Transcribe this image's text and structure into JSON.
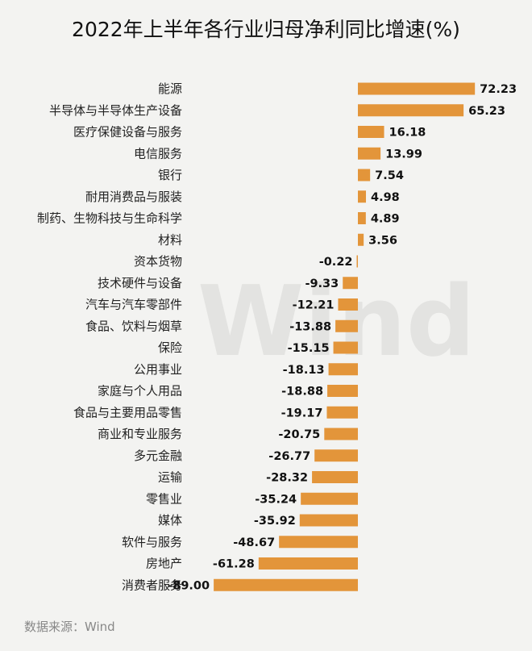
{
  "chart_data": {
    "type": "bar",
    "orientation": "horizontal",
    "title": "2022年上半年各行业归母净利同比增速(%)",
    "source": "数据来源：Wind",
    "watermark": "Wind",
    "bar_color": "#e3953a",
    "categories": [
      "能源",
      "半导体与半导体生产设备",
      "医疗保健设备与服务",
      "电信服务",
      "银行",
      "耐用消费品与服装",
      "制药、生物科技与生命科学",
      "材料",
      "资本货物",
      "技术硬件与设备",
      "汽车与汽车零部件",
      "食品、饮料与烟草",
      "保险",
      "公用事业",
      "家庭与个人用品",
      "食品与主要用品零售",
      "商业和专业服务",
      "多元金融",
      "运输",
      "零售业",
      "媒体",
      "软件与服务",
      "房地产",
      "消费者服务"
    ],
    "values": [
      72.23,
      65.23,
      16.18,
      13.99,
      7.54,
      4.98,
      4.89,
      3.56,
      -0.22,
      -9.33,
      -12.21,
      -13.88,
      -15.15,
      -18.13,
      -18.88,
      -19.17,
      -20.75,
      -26.77,
      -28.32,
      -35.24,
      -35.92,
      -48.67,
      -61.28,
      -89.0
    ],
    "labels": [
      "72.23",
      "65.23",
      "16.18",
      "13.99",
      "7.54",
      "4.98",
      "4.89",
      "3.56",
      "-0.22",
      "-9.33",
      "-12.21",
      "-13.88",
      "-15.15",
      "-18.13",
      "-18.88",
      "-19.17",
      "-20.75",
      "-26.77",
      "-28.32",
      "-35.24",
      "-35.92",
      "-48.67",
      "-61.28",
      "-89.00"
    ]
  }
}
